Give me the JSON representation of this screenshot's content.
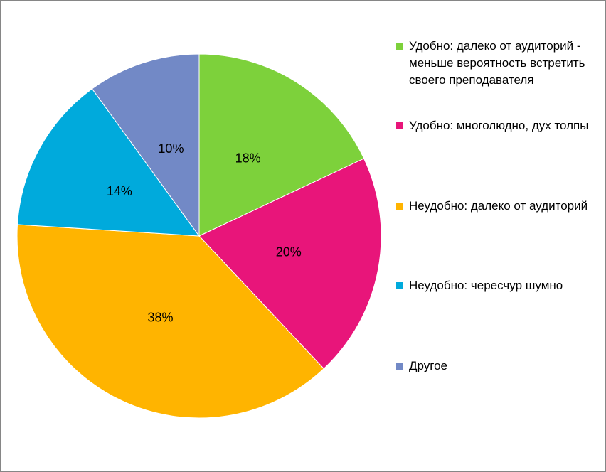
{
  "chart_data": {
    "type": "pie",
    "categories": [
      "Удобно: далеко от аудиторий - меньше вероятность встретить своего преподавателя",
      "Удобно: многолюдно, дух толпы",
      "Неудобно: далеко от аудиторий",
      "Неудобно: чересчур шумно",
      "Другое"
    ],
    "values": [
      18,
      20,
      38,
      14,
      10
    ],
    "value_labels": [
      "18%",
      "20%",
      "38%",
      "14%",
      "10%"
    ],
    "colors": [
      "#7dd13b",
      "#e8157a",
      "#ffb400",
      "#00aadc",
      "#7289c6"
    ],
    "legend": "right"
  }
}
